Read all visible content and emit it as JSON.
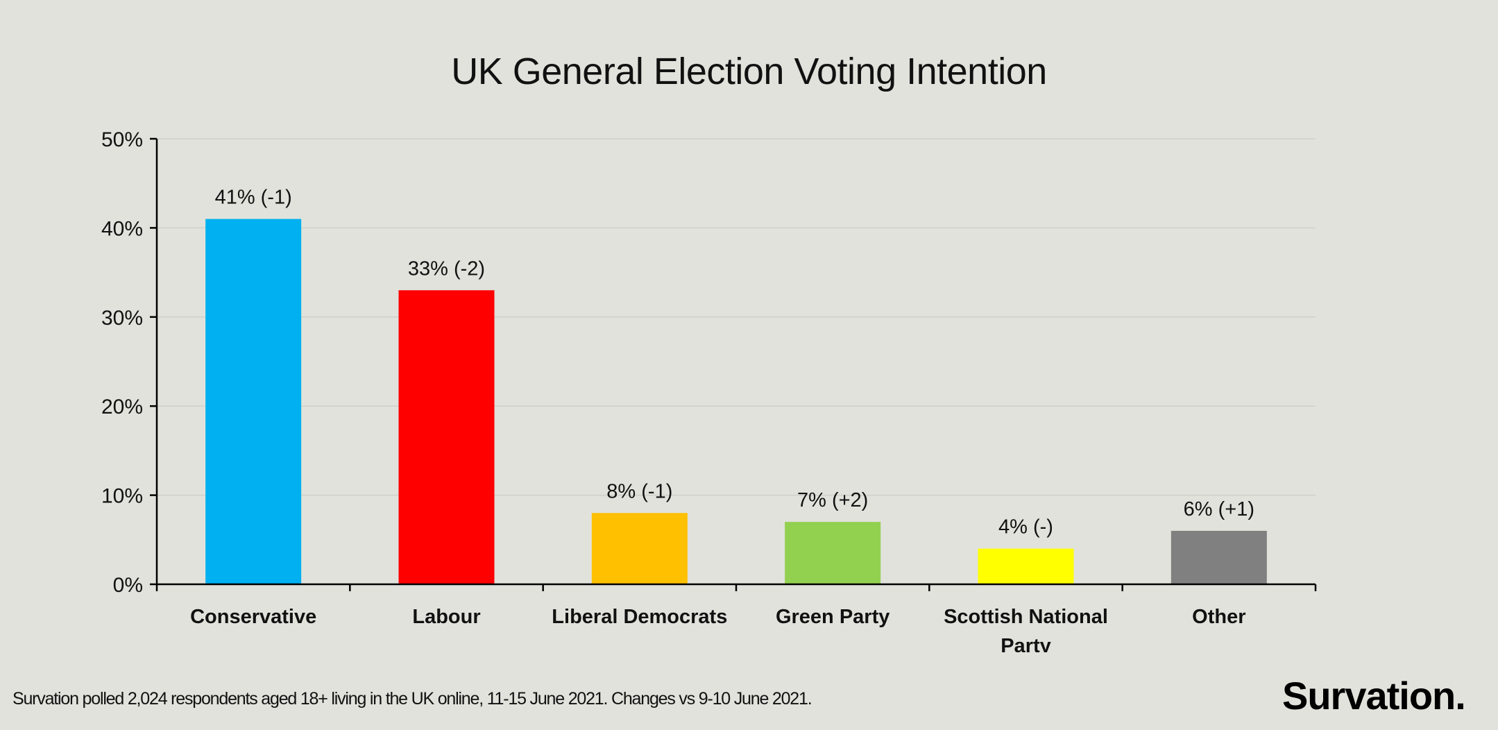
{
  "chart_data": {
    "type": "bar",
    "title": "UK General Election Voting Intention",
    "categories": [
      "Conservative",
      "Labour",
      "Liberal Democrats",
      "Green Party",
      "Scottish National Party",
      "Other"
    ],
    "category_lines": [
      [
        "Conservative"
      ],
      [
        "Labour"
      ],
      [
        "Liberal Democrats"
      ],
      [
        "Green Party"
      ],
      [
        "Scottish National",
        "Party"
      ],
      [
        "Other"
      ]
    ],
    "values": [
      41,
      33,
      8,
      7,
      4,
      6
    ],
    "data_labels": [
      "41% (-1)",
      "33% (-2)",
      "8% (-1)",
      "7% (+2)",
      "4% (-)",
      "6% (+1)"
    ],
    "colors": [
      "#00b0f0",
      "#ff0000",
      "#ffc000",
      "#92d050",
      "#ffff00",
      "#808080"
    ],
    "ylim": [
      0,
      50
    ],
    "yticks": [
      0,
      10,
      20,
      30,
      40,
      50
    ],
    "ytick_labels": [
      "0%",
      "10%",
      "20%",
      "30%",
      "40%",
      "50%"
    ],
    "grid": true,
    "xlabel": "",
    "ylabel": ""
  },
  "footer": "Survation polled 2,024 respondents aged 18+ living in the UK online, 11-15 June 2021. Changes vs 9-10 June 2021.",
  "logo": "Survation."
}
